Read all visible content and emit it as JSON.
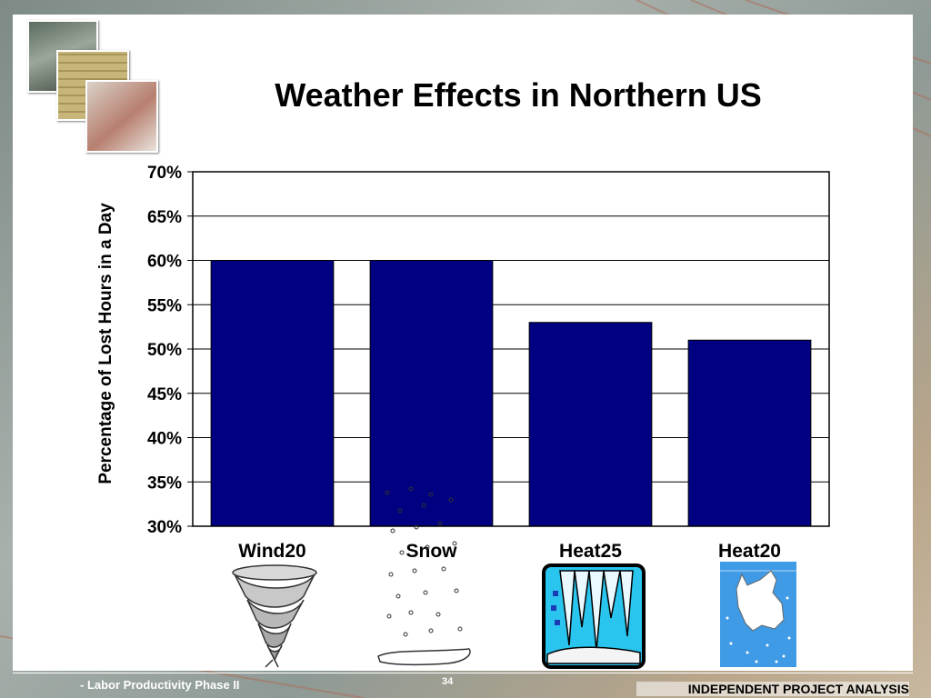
{
  "slide": {
    "title": "Weather Effects in Northern US",
    "footer_left": "- Labor Productivity Phase II",
    "page_number": "34",
    "footer_right": "INDEPENDENT PROJECT ANALYSIS"
  },
  "icons": [
    "tornado-icon",
    "snow-icon",
    "icicles-icon",
    "hot-dog-icon",
    "worker-photo-icon"
  ],
  "colors": {
    "bar": "#000080",
    "background": "#ffffff"
  },
  "chart_data": {
    "type": "bar",
    "title": "Weather Effects in Northern US",
    "ylabel": "Percentage of Lost Hours in a Day",
    "xlabel": "",
    "categories": [
      "Wind20",
      "Snow",
      "Heat25",
      "Heat20"
    ],
    "values": [
      60,
      60,
      53,
      51
    ],
    "ylim": [
      30,
      70
    ],
    "yticks": [
      30,
      35,
      40,
      45,
      50,
      55,
      60,
      65,
      70
    ],
    "ytick_labels": [
      "30%",
      "35%",
      "40%",
      "45%",
      "50%",
      "55%",
      "60%",
      "65%",
      "70%"
    ],
    "grid": true,
    "legend": "none"
  }
}
